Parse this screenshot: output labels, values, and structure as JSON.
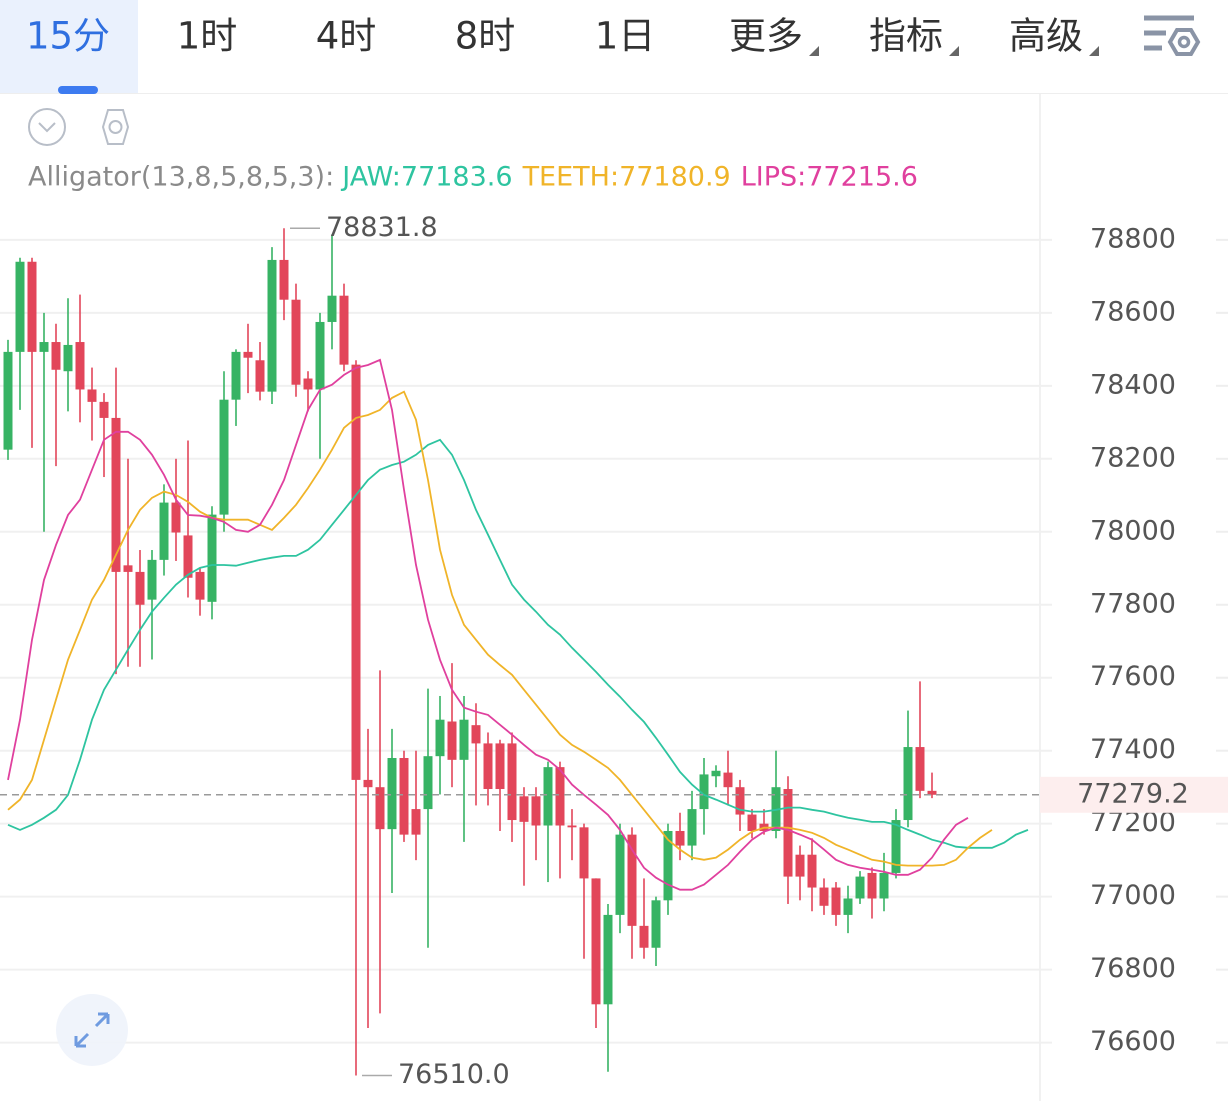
{
  "tabs": [
    {
      "label": "15分",
      "dropdown": false
    },
    {
      "label": "1时",
      "dropdown": false
    },
    {
      "label": "4时",
      "dropdown": false
    },
    {
      "label": "8时",
      "dropdown": false
    },
    {
      "label": "1日",
      "dropdown": false
    },
    {
      "label": "更多",
      "dropdown": true
    },
    {
      "label": "指标",
      "dropdown": true
    },
    {
      "label": "高级",
      "dropdown": true
    }
  ],
  "active_tab": 0,
  "chart_data": {
    "type": "candlestick",
    "indicator": {
      "label": "Alligator(13,8,5,8,5,3):",
      "items": [
        {
          "text": "JAW:77183.6",
          "color": "#2ec4a0"
        },
        {
          "text": "TEETH:77180.9",
          "color": "#f0b429"
        },
        {
          "text": "LIPS:77215.6",
          "color": "#e0409e"
        }
      ]
    },
    "up_color": "#37b364",
    "down_color": "#e2465a",
    "candles": {
      "open": [
        78225,
        78493,
        78740,
        78493,
        78520,
        78440,
        78520,
        78390,
        78356,
        78312,
        77908,
        77890,
        77814,
        77923,
        78080,
        77990,
        77890,
        77808,
        78047,
        78362,
        78493,
        78470,
        78384,
        78745,
        78636,
        78420,
        78390,
        78575,
        78647,
        78458,
        77320,
        77300,
        77185,
        77380,
        77240,
        77240,
        77385,
        77480,
        77375,
        77470,
        77420,
        77420,
        77420,
        77275,
        77275,
        77195,
        77355,
        77195,
        77190,
        77050,
        76705,
        76950,
        77170,
        76920,
        76860,
        76990,
        77180,
        77140,
        77240,
        77330,
        77340,
        77300,
        77225,
        77200,
        77180,
        77295,
        77115,
        77115,
        77025,
        77025,
        76950,
        76995,
        77065,
        76995,
        77065,
        77210,
        77410,
        77290,
        null,
        null,
        null,
        null,
        null,
        null,
        null,
        null
      ],
      "high": [
        78526,
        78751,
        78751,
        78600,
        78570,
        78640,
        78650,
        78450,
        78380,
        78450,
        78200,
        77950,
        77950,
        78130,
        78200,
        78250,
        77900,
        78070,
        78440,
        78500,
        78570,
        78520,
        78780,
        78831.8,
        78680,
        78440,
        78600,
        78815,
        78680,
        78470,
        77460,
        77620,
        77460,
        77400,
        77400,
        77570,
        77550,
        77640,
        77550,
        77530,
        77450,
        77430,
        77450,
        77300,
        77300,
        77370,
        77370,
        77240,
        77200,
        77050,
        76980,
        77200,
        77190,
        77050,
        77000,
        77200,
        77230,
        77290,
        77380,
        77360,
        77400,
        77320,
        77240,
        77240,
        77400,
        77330,
        77140,
        77160,
        77050,
        77040,
        77030,
        77070,
        77080,
        77120,
        77240,
        77510,
        77590,
        77340,
        null,
        null,
        null,
        null,
        null,
        null,
        null,
        null
      ],
      "low": [
        78197,
        78334,
        78230,
        78000,
        78180,
        78330,
        78300,
        78250,
        78150,
        77610,
        77630,
        77630,
        77650,
        77880,
        77920,
        77820,
        77770,
        77760,
        78000,
        78290,
        78380,
        78360,
        78350,
        78580,
        78370,
        78330,
        78200,
        78500,
        78440,
        76510,
        76640,
        76680,
        77010,
        77150,
        77100,
        76860,
        77280,
        77300,
        77150,
        77250,
        77250,
        77180,
        77150,
        77030,
        77100,
        77040,
        77050,
        77100,
        76830,
        76640,
        76520,
        76900,
        76830,
        76830,
        76810,
        76950,
        77100,
        77100,
        77170,
        77300,
        77250,
        77180,
        77160,
        77170,
        77160,
        76980,
        76990,
        76960,
        76950,
        76920,
        76900,
        76980,
        76940,
        76960,
        77050,
        77190,
        77270,
        77270,
        null,
        null,
        null,
        null,
        null,
        null,
        null,
        null
      ],
      "close": [
        78493,
        78740,
        78493,
        78520,
        78444,
        78512,
        78390,
        78356,
        78312,
        77890,
        77890,
        77800,
        77923,
        78080,
        77998,
        77874,
        77814,
        78047,
        78362,
        78493,
        78477,
        78384,
        78745,
        78636,
        78403,
        78390,
        78575,
        78647,
        78458,
        77320,
        77300,
        77185,
        77380,
        77170,
        77170,
        77385,
        77485,
        77375,
        77485,
        77420,
        77295,
        77295,
        77210,
        77205,
        77195,
        77355,
        77195,
        77190,
        77050,
        76705,
        76950,
        77170,
        76920,
        76860,
        76990,
        77180,
        77140,
        77240,
        77335,
        77345,
        77300,
        77225,
        77180,
        77180,
        77300,
        77055,
        77055,
        77025,
        76975,
        76950,
        76995,
        77055,
        76995,
        77065,
        77210,
        77410,
        77290,
        77279.2,
        null,
        null,
        null,
        null,
        null,
        null,
        null,
        null
      ]
    },
    "lines": [
      {
        "color": "#2ec4a0",
        "values": [
          77197,
          77183,
          77197,
          77216,
          77238,
          77279,
          77375,
          77485,
          77567,
          77622,
          77677,
          77731,
          77781,
          77819,
          77855,
          77882,
          77901,
          77909,
          77909,
          77907,
          77915,
          77923,
          77929,
          77934,
          77934,
          77951,
          77978,
          78019,
          78060,
          78101,
          78142,
          78170,
          78183,
          78192,
          78211,
          78238,
          78252,
          78211,
          78142,
          78060,
          77992,
          77923,
          77855,
          77814,
          77781,
          77745,
          77718,
          77682,
          77649,
          77616,
          77581,
          77548,
          77512,
          77479,
          77435,
          77389,
          77342,
          77307,
          77279,
          77266,
          77252,
          77238,
          77233,
          77233,
          77238,
          77244,
          77244,
          77238,
          77233,
          77224,
          77216,
          77211,
          77205,
          77205,
          77197,
          77183,
          77170,
          77156,
          77148,
          77137,
          77134,
          77134,
          77134,
          77148,
          77170,
          77183
        ]
      },
      {
        "color": "#f0b429",
        "values": [
          77238,
          77266,
          77320,
          77430,
          77540,
          77649,
          77731,
          77814,
          77868,
          77937,
          78005,
          78060,
          78093,
          78110,
          78101,
          78082,
          78055,
          78038,
          78033,
          78033,
          78033,
          78019,
          78005,
          78038,
          78074,
          78120,
          78170,
          78225,
          78285,
          78312,
          78320,
          78334,
          78367,
          78384,
          78307,
          78142,
          77951,
          77827,
          77745,
          77704,
          77663,
          77635,
          77608,
          77567,
          77526,
          77485,
          77444,
          77416,
          77397,
          77375,
          77353,
          77320,
          77279,
          77238,
          77197,
          77156,
          77129,
          77107,
          77101,
          77107,
          77129,
          77156,
          77178,
          77189,
          77189,
          77189,
          77183,
          77175,
          77161,
          77142,
          77129,
          77115,
          77101,
          77096,
          77087,
          77085,
          77085,
          77085,
          77087,
          77101,
          77134,
          77161,
          77183,
          null,
          null,
          null
        ]
      },
      {
        "color": "#e0409e",
        "values": [
          77320,
          77485,
          77704,
          77868,
          77964,
          78046,
          78088,
          78170,
          78252,
          78274,
          78274,
          78252,
          78211,
          78156,
          78088,
          78046,
          78044,
          78038,
          78027,
          78005,
          78000,
          78019,
          78074,
          78142,
          78238,
          78334,
          78389,
          78403,
          78430,
          78449,
          78457,
          78471,
          78334,
          78115,
          77909,
          77759,
          77649,
          77567,
          77518,
          77507,
          77498,
          77471,
          77444,
          77416,
          77389,
          77375,
          77348,
          77307,
          77279,
          77252,
          77224,
          77183,
          77129,
          77079,
          77052,
          77033,
          77019,
          77019,
          77033,
          77060,
          77087,
          77123,
          77156,
          77178,
          77189,
          77183,
          77170,
          77156,
          77129,
          77101,
          77087,
          77079,
          77074,
          77068,
          77060,
          77060,
          77074,
          77107,
          77156,
          77197,
          77216,
          null,
          null,
          null,
          null,
          null
        ]
      }
    ],
    "ylim": [
      76440,
      79197
    ],
    "yticks": [
      76600,
      76800,
      77000,
      77200,
      77400,
      77600,
      77800,
      78000,
      78200,
      78400,
      78600,
      78800
    ],
    "grid": true,
    "last_price": 77279.2,
    "high_marker": 78831.8,
    "low_marker": {
      "value": 76510,
      "label": "76510.0"
    }
  }
}
